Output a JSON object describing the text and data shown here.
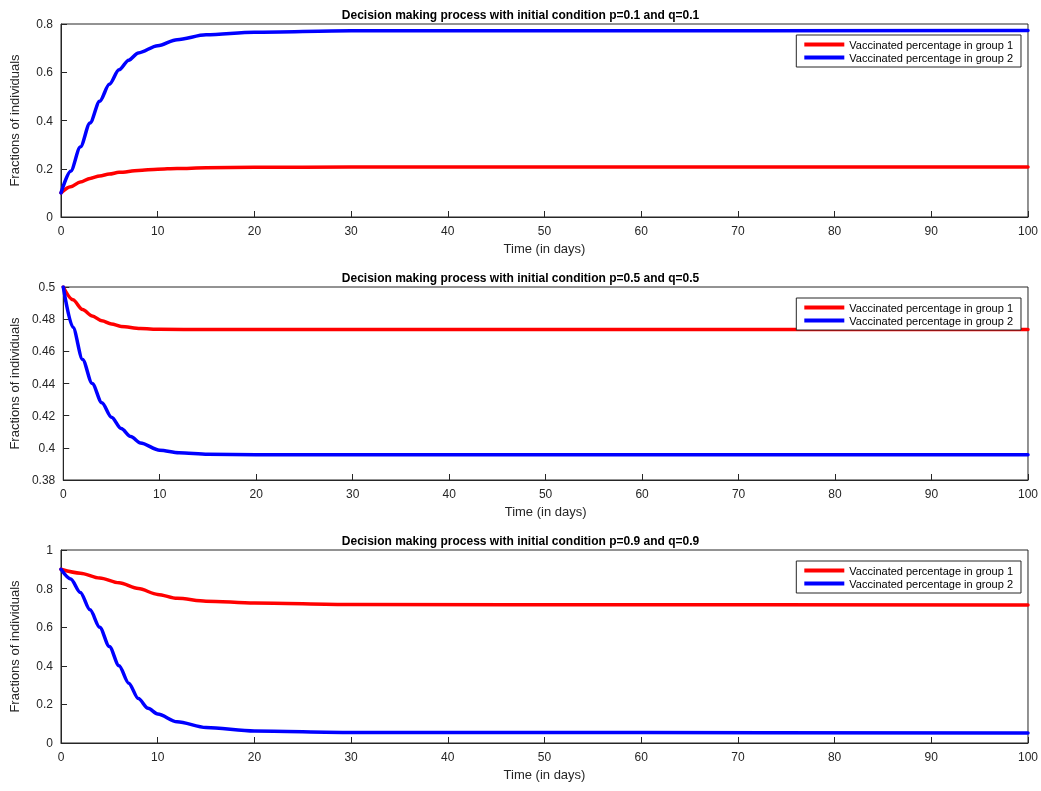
{
  "chart_data": [
    {
      "type": "line",
      "title": "Decision making process with initial condition p=0.1 and q=0.1",
      "xlabel": "Time (in days)",
      "ylabel": "Fractions of individuals",
      "xlim": [
        0,
        100
      ],
      "ylim": [
        0,
        0.8
      ],
      "xticks": [
        0,
        10,
        20,
        30,
        40,
        50,
        60,
        70,
        80,
        90,
        100
      ],
      "yticks": [
        0,
        0.2,
        0.4,
        0.6,
        0.8
      ],
      "grid": false,
      "legend": "top right",
      "marker": "none",
      "line_style": "solid",
      "series": [
        {
          "name": "Vaccinated percentage in group 1",
          "color": "#ff0000",
          "x": [
            0,
            1,
            2,
            3,
            4,
            5,
            6,
            8,
            10,
            12,
            15,
            20,
            30,
            100
          ],
          "values": [
            0.1,
            0.125,
            0.145,
            0.16,
            0.17,
            0.178,
            0.185,
            0.193,
            0.198,
            0.201,
            0.204,
            0.206,
            0.207,
            0.207
          ]
        },
        {
          "name": "Vaccinated percentage in group 2",
          "color": "#0000ff",
          "x": [
            0,
            1,
            2,
            3,
            4,
            5,
            6,
            7,
            8,
            10,
            12,
            15,
            20,
            30,
            100
          ],
          "values": [
            0.1,
            0.19,
            0.29,
            0.39,
            0.48,
            0.55,
            0.61,
            0.65,
            0.68,
            0.71,
            0.735,
            0.755,
            0.766,
            0.772,
            0.773
          ]
        }
      ]
    },
    {
      "type": "line",
      "title": "Decision making process with initial condition p=0.5 and q=0.5",
      "xlabel": "Time (in days)",
      "ylabel": "Fractions of individuals",
      "xlim": [
        0,
        100
      ],
      "ylim": [
        0.38,
        0.5
      ],
      "xticks": [
        0,
        10,
        20,
        30,
        40,
        50,
        60,
        70,
        80,
        90,
        100
      ],
      "yticks": [
        0.38,
        0.4,
        0.42,
        0.44,
        0.46,
        0.48,
        0.5
      ],
      "grid": false,
      "legend": "top right",
      "marker": "none",
      "line_style": "solid",
      "series": [
        {
          "name": "Vaccinated percentage in group 1",
          "color": "#ff0000",
          "x": [
            0,
            1,
            2,
            3,
            4,
            5,
            6,
            8,
            10,
            15,
            100
          ],
          "values": [
            0.5,
            0.492,
            0.486,
            0.482,
            0.479,
            0.477,
            0.4755,
            0.4742,
            0.4737,
            0.4735,
            0.4735
          ]
        },
        {
          "name": "Vaccinated percentage in group 2",
          "color": "#0000ff",
          "x": [
            0,
            1,
            2,
            3,
            4,
            5,
            6,
            7,
            8,
            10,
            12,
            15,
            20,
            100
          ],
          "values": [
            0.5,
            0.475,
            0.455,
            0.44,
            0.428,
            0.419,
            0.412,
            0.407,
            0.403,
            0.3985,
            0.397,
            0.396,
            0.3957,
            0.3957
          ]
        }
      ]
    },
    {
      "type": "line",
      "title": "Decision making process with initial condition p=0.9 and q=0.9",
      "xlabel": "Time (in days)",
      "ylabel": "Fractions of individuals",
      "xlim": [
        0,
        100
      ],
      "ylim": [
        0,
        1
      ],
      "xticks": [
        0,
        10,
        20,
        30,
        40,
        50,
        60,
        70,
        80,
        90,
        100
      ],
      "yticks": [
        0,
        0.2,
        0.4,
        0.6,
        0.8,
        1
      ],
      "grid": false,
      "legend": "top right",
      "marker": "none",
      "line_style": "solid",
      "series": [
        {
          "name": "Vaccinated percentage in group 1",
          "color": "#ff0000",
          "x": [
            0,
            2,
            4,
            6,
            8,
            10,
            12,
            15,
            20,
            30,
            100
          ],
          "values": [
            0.9,
            0.88,
            0.855,
            0.83,
            0.8,
            0.77,
            0.75,
            0.735,
            0.725,
            0.717,
            0.715
          ]
        },
        {
          "name": "Vaccinated percentage in group 2",
          "color": "#0000ff",
          "x": [
            0,
            1,
            2,
            3,
            4,
            5,
            6,
            7,
            8,
            9,
            10,
            12,
            15,
            20,
            30,
            100
          ],
          "values": [
            0.9,
            0.85,
            0.78,
            0.69,
            0.6,
            0.5,
            0.4,
            0.31,
            0.23,
            0.18,
            0.15,
            0.11,
            0.08,
            0.062,
            0.055,
            0.052
          ]
        }
      ]
    }
  ]
}
